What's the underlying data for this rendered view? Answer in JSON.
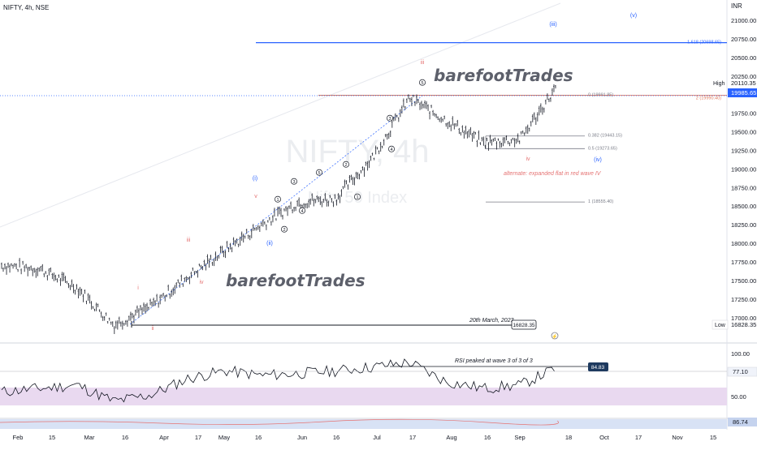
{
  "header": {
    "symbol_line": "NIFTY, 4h, NSE"
  },
  "currency": "INR",
  "watermark": {
    "symbol": "NIFTY, 4h",
    "name": "Nifty 50 Index"
  },
  "brand": {
    "top": "barefootTrades",
    "bottom": "barefootTrades"
  },
  "price_axis": {
    "labels": [
      "21000.00",
      "20750.00",
      "20500.00",
      "20250.00",
      "19750.00",
      "19500.00",
      "19250.00",
      "19000.00",
      "18750.00",
      "18500.00",
      "18250.00",
      "18000.00",
      "17750.00",
      "17500.00",
      "17250.00",
      "17000.00"
    ],
    "high_label": "High",
    "high_value": "20110.35",
    "last_value": "19985.65",
    "low_label": "Low",
    "low_value": "16828.35"
  },
  "fib_levels": [
    {
      "label": "1.618 (20698.65)",
      "price": 20698.65,
      "color": "#2962ff"
    },
    {
      "label": "0 (19991.85)",
      "price": 19991.85,
      "color": "#787b86"
    },
    {
      "label": "2 (19990.40)",
      "price": 19990.4,
      "color": "#e07a5f"
    },
    {
      "label": "0.382 (19443.15)",
      "price": 19443.15,
      "color": "#787b86"
    },
    {
      "label": "0.5 (19273.65)",
      "price": 19273.65,
      "color": "#787b86"
    },
    {
      "label": "1 (18555.40)",
      "price": 18555.4,
      "color": "#787b86"
    }
  ],
  "annotations": {
    "low_note": "20th March, 2023",
    "low_value_box": "16828.35",
    "alternate_note": "alternate: expanded flat in red wave IV",
    "rsi_note": "RSI peaked at wave 3 of 3 of 3",
    "rsi_peak_box": "84.83"
  },
  "wave_labels": {
    "blue": [
      "(i)",
      "(ii)",
      "(iii)",
      "(iv)",
      "(v)"
    ],
    "red": [
      "i",
      "ii",
      "iii",
      "iv",
      "v",
      "iii",
      "iv"
    ],
    "circled": [
      "1",
      "2",
      "3",
      "4",
      "5",
      "1",
      "2",
      "3",
      "4",
      "5"
    ]
  },
  "rsi_axis": {
    "labels": [
      "100.00",
      "50.00"
    ],
    "current": "77.10",
    "second_current": "86.74"
  },
  "time_axis": [
    "Feb",
    "15",
    "Mar",
    "16",
    "Apr",
    "17",
    "May",
    "16",
    "Jun",
    "16",
    "Jul",
    "17",
    "Aug",
    "16",
    "Sep",
    "18",
    "Oct",
    "17",
    "Nov",
    "15"
  ],
  "colors": {
    "up": "#26a69a",
    "down": "#9598a1",
    "bar": "#131722",
    "blue_wave": "#2962ff",
    "red_wave": "#e57373",
    "rsi_band": "#e1bee7",
    "rsi_line": "#131722"
  },
  "chart_data": {
    "type": "line",
    "title": "NIFTY, 4h, NSE",
    "xlabel": "",
    "ylabel": "INR",
    "ylim": [
      16650,
      21200
    ],
    "x": [
      "Feb 1",
      "Feb 15",
      "Mar 1",
      "Mar 16",
      "Apr 1",
      "Apr 17",
      "May 1",
      "May 16",
      "Jun 1",
      "Jun 16",
      "Jul 1",
      "Jul 17",
      "Aug 1",
      "Aug 16",
      "Sep 1",
      "Sep 15"
    ],
    "series": [
      {
        "values": [
          17700,
          17650,
          17400,
          16900,
          17150,
          17550,
          17900,
          18250,
          18550,
          18600,
          19150,
          19950,
          19650,
          19350,
          19400,
          20110
        ]
      }
    ],
    "rsi": {
      "ylim": [
        0,
        100
      ],
      "band": [
        30,
        70
      ],
      "values": [
        40,
        45,
        50,
        25,
        35,
        60,
        72,
        65,
        68,
        72,
        78,
        85,
        55,
        45,
        50,
        77
      ]
    }
  }
}
